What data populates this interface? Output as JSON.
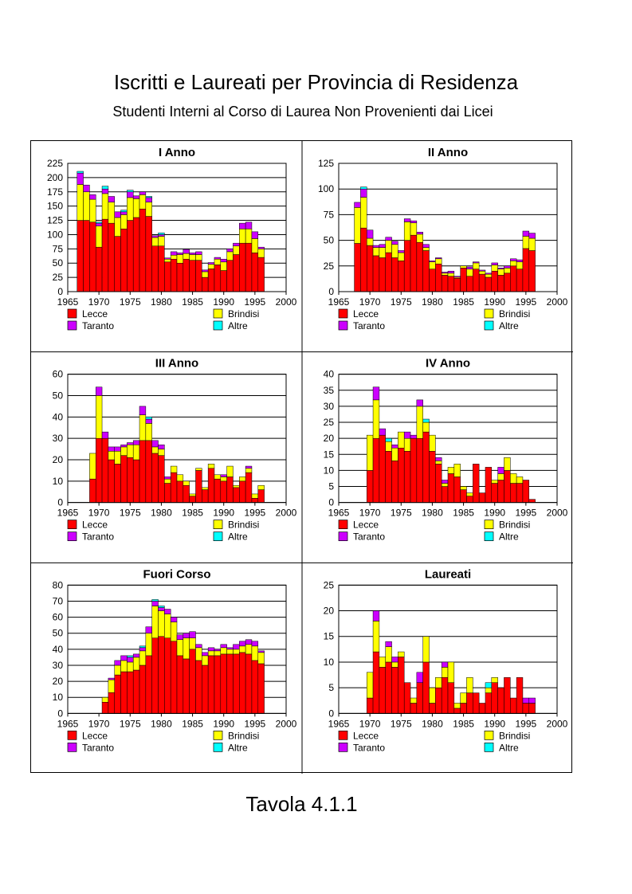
{
  "title": "Iscritti e Laureati per Provincia di Residenza",
  "subtitle": "Studenti Interni al Corso di Laurea Non Provenienti dai Licei",
  "footer": "Tavola 4.1.1",
  "colors": {
    "Lecce": "#ff0000",
    "Brindisi": "#ffff00",
    "Taranto": "#cc00ff",
    "Altre": "#00ffff"
  },
  "legend": [
    "Lecce",
    "Brindisi",
    "Taranto",
    "Altre"
  ],
  "chart_data": [
    {
      "type": "bar",
      "stacked": true,
      "title": "I Anno",
      "xlim": [
        1965,
        2000
      ],
      "xticks": [
        1965,
        1970,
        1975,
        1980,
        1985,
        1990,
        1995,
        2000
      ],
      "ylim": [
        0,
        225
      ],
      "yticks": [
        0,
        25,
        50,
        75,
        100,
        125,
        150,
        175,
        200,
        225
      ],
      "x": [
        1967,
        1968,
        1969,
        1970,
        1971,
        1972,
        1973,
        1974,
        1975,
        1976,
        1977,
        1978,
        1979,
        1980,
        1981,
        1982,
        1983,
        1984,
        1985,
        1986,
        1987,
        1988,
        1989,
        1990,
        1991,
        1992,
        1993,
        1994,
        1995,
        1996
      ],
      "series": [
        {
          "name": "Lecce",
          "values": [
            125,
            125,
            122,
            78,
            127,
            120,
            97,
            110,
            125,
            130,
            145,
            132,
            80,
            80,
            52,
            57,
            50,
            57,
            55,
            55,
            25,
            40,
            47,
            37,
            55,
            65,
            85,
            85,
            68,
            60
          ]
        },
        {
          "name": "Brindisi",
          "values": [
            63,
            50,
            40,
            37,
            45,
            37,
            33,
            25,
            40,
            33,
            25,
            25,
            15,
            17,
            5,
            7,
            15,
            10,
            10,
            10,
            10,
            8,
            10,
            15,
            15,
            15,
            25,
            25,
            25,
            15
          ]
        },
        {
          "name": "Taranto",
          "values": [
            20,
            12,
            8,
            5,
            8,
            10,
            10,
            5,
            10,
            5,
            5,
            8,
            3,
            3,
            2,
            6,
            3,
            7,
            3,
            5,
            3,
            3,
            3,
            5,
            5,
            5,
            10,
            12,
            12,
            3
          ]
        },
        {
          "name": "Altre",
          "values": [
            3,
            0,
            0,
            2,
            5,
            0,
            0,
            3,
            3,
            0,
            0,
            2,
            0,
            3,
            0,
            0,
            0,
            0,
            0,
            0,
            0,
            0,
            0,
            0,
            0,
            0,
            0,
            0,
            0,
            0
          ]
        }
      ],
      "legend": [
        "Lecce",
        "Brindisi",
        "Taranto",
        "Altre"
      ],
      "grid": true
    },
    {
      "type": "bar",
      "stacked": true,
      "title": "II Anno",
      "xlim": [
        1965,
        2000
      ],
      "xticks": [
        1965,
        1970,
        1975,
        1980,
        1985,
        1990,
        1995,
        2000
      ],
      "ylim": [
        0,
        125
      ],
      "yticks": [
        0,
        25,
        50,
        75,
        100,
        125
      ],
      "x": [
        1968,
        1969,
        1970,
        1971,
        1972,
        1973,
        1974,
        1975,
        1976,
        1977,
        1978,
        1979,
        1980,
        1981,
        1982,
        1983,
        1984,
        1985,
        1986,
        1987,
        1988,
        1989,
        1990,
        1991,
        1992,
        1993,
        1994,
        1995,
        1996
      ],
      "series": [
        {
          "name": "Lecce",
          "values": [
            47,
            62,
            45,
            35,
            33,
            38,
            33,
            30,
            50,
            55,
            48,
            40,
            22,
            27,
            16,
            15,
            13,
            23,
            15,
            22,
            17,
            14,
            20,
            16,
            18,
            25,
            22,
            42,
            40
          ]
        },
        {
          "name": "Brindisi",
          "values": [
            35,
            30,
            7,
            8,
            10,
            12,
            13,
            8,
            18,
            12,
            8,
            3,
            7,
            5,
            2,
            3,
            1,
            2,
            7,
            6,
            3,
            3,
            6,
            6,
            5,
            5,
            7,
            12,
            12
          ]
        },
        {
          "name": "Taranto",
          "values": [
            5,
            8,
            8,
            2,
            3,
            3,
            3,
            2,
            3,
            2,
            2,
            3,
            1,
            1,
            1,
            2,
            1,
            0,
            2,
            1,
            1,
            1,
            2,
            1,
            2,
            2,
            2,
            5,
            5
          ]
        },
        {
          "name": "Altre",
          "values": [
            0,
            2,
            0,
            0,
            0,
            0,
            0,
            0,
            0,
            0,
            0,
            0,
            0,
            0,
            0,
            0,
            0,
            0,
            0,
            0,
            0,
            0,
            0,
            0,
            0,
            0,
            0,
            0,
            0
          ]
        }
      ],
      "legend": [
        "Lecce",
        "Brindisi",
        "Taranto",
        "Altre"
      ],
      "grid": true
    },
    {
      "type": "bar",
      "stacked": true,
      "title": "III Anno",
      "xlim": [
        1965,
        2000
      ],
      "xticks": [
        1965,
        1970,
        1975,
        1980,
        1985,
        1990,
        1995,
        2000
      ],
      "ylim": [
        0,
        60
      ],
      "yticks": [
        0,
        10,
        20,
        30,
        40,
        50,
        60
      ],
      "x": [
        1969,
        1970,
        1971,
        1972,
        1973,
        1974,
        1975,
        1976,
        1977,
        1978,
        1979,
        1980,
        1981,
        1982,
        1983,
        1984,
        1985,
        1986,
        1987,
        1988,
        1989,
        1990,
        1991,
        1992,
        1993,
        1994,
        1995,
        1996
      ],
      "series": [
        {
          "name": "Lecce",
          "values": [
            11,
            30,
            30,
            20,
            18,
            22,
            21,
            20,
            29,
            29,
            23,
            22,
            9,
            14,
            10,
            8,
            3,
            15,
            6,
            16,
            11,
            10,
            12,
            7,
            10,
            14,
            2,
            6
          ]
        },
        {
          "name": "Brindisi",
          "values": [
            12,
            20,
            0,
            4,
            6,
            4,
            6,
            7,
            12,
            8,
            3,
            3,
            2,
            3,
            3,
            2,
            1,
            1,
            1,
            2,
            2,
            2,
            5,
            1,
            2,
            2,
            2,
            2
          ]
        },
        {
          "name": "Taranto",
          "values": [
            0,
            4,
            3,
            2,
            2,
            1,
            1,
            2,
            4,
            2,
            3,
            2,
            1,
            0,
            0,
            0,
            0,
            0,
            0,
            0,
            0,
            1,
            0,
            0,
            0,
            1,
            0,
            0
          ]
        },
        {
          "name": "Altre",
          "values": [
            0,
            0,
            0,
            0,
            0,
            0,
            0,
            0,
            0,
            1,
            0,
            0,
            0,
            0,
            0,
            0,
            0,
            0,
            0,
            0,
            0,
            0,
            0,
            0,
            0,
            0,
            0,
            0
          ]
        }
      ],
      "legend": [
        "Lecce",
        "Brindisi",
        "Taranto",
        "Altre"
      ],
      "grid": true
    },
    {
      "type": "bar",
      "stacked": true,
      "title": "IV Anno",
      "xlim": [
        1965,
        2000
      ],
      "xticks": [
        1965,
        1970,
        1975,
        1980,
        1985,
        1990,
        1995,
        2000
      ],
      "ylim": [
        0,
        40
      ],
      "yticks": [
        0,
        5,
        10,
        15,
        20,
        25,
        30,
        35,
        40
      ],
      "x": [
        1970,
        1971,
        1972,
        1973,
        1974,
        1975,
        1976,
        1977,
        1978,
        1979,
        1980,
        1981,
        1982,
        1983,
        1984,
        1985,
        1986,
        1987,
        1988,
        1989,
        1990,
        1991,
        1992,
        1993,
        1994,
        1995,
        1996
      ],
      "series": [
        {
          "name": "Lecce",
          "values": [
            10,
            20,
            21,
            16,
            13,
            17,
            16,
            20,
            20,
            22,
            16,
            12,
            5,
            9,
            8,
            4,
            2,
            12,
            3,
            11,
            6,
            7,
            10,
            6,
            6,
            7,
            1
          ]
        },
        {
          "name": "Brindisi",
          "values": [
            11,
            12,
            0,
            3,
            4,
            5,
            4,
            0,
            10,
            3,
            5,
            1,
            1,
            2,
            4,
            1,
            1,
            0,
            0,
            0,
            1,
            2,
            4,
            3,
            2,
            0,
            0
          ]
        },
        {
          "name": "Taranto",
          "values": [
            0,
            4,
            2,
            0,
            1,
            0,
            2,
            1,
            2,
            0,
            0,
            1,
            1,
            0,
            0,
            0,
            0,
            0,
            0,
            0,
            0,
            2,
            0,
            0,
            0,
            0,
            0
          ]
        },
        {
          "name": "Altre",
          "values": [
            0,
            0,
            0,
            1,
            0,
            0,
            0,
            0,
            0,
            1,
            0,
            0,
            0,
            0,
            0,
            0,
            0,
            0,
            0,
            0,
            0,
            0,
            0,
            0,
            0,
            0,
            0
          ]
        }
      ],
      "legend": [
        "Lecce",
        "Brindisi",
        "Taranto",
        "Altre"
      ],
      "grid": true
    },
    {
      "type": "bar",
      "stacked": true,
      "title": "Fuori Corso",
      "xlim": [
        1965,
        2000
      ],
      "xticks": [
        1965,
        1970,
        1975,
        1980,
        1985,
        1990,
        1995,
        2000
      ],
      "ylim": [
        0,
        80
      ],
      "yticks": [
        0,
        10,
        20,
        30,
        40,
        50,
        60,
        70,
        80
      ],
      "x": [
        1971,
        1972,
        1973,
        1974,
        1975,
        1976,
        1977,
        1978,
        1979,
        1980,
        1981,
        1982,
        1983,
        1984,
        1985,
        1986,
        1987,
        1988,
        1989,
        1990,
        1991,
        1992,
        1993,
        1994,
        1995,
        1996
      ],
      "series": [
        {
          "name": "Lecce",
          "values": [
            7,
            13,
            24,
            26,
            26,
            27,
            30,
            36,
            47,
            48,
            47,
            45,
            36,
            34,
            40,
            33,
            30,
            36,
            36,
            37,
            37,
            37,
            38,
            37,
            33,
            31
          ]
        },
        {
          "name": "Brindisi",
          "values": [
            3,
            8,
            6,
            7,
            6,
            8,
            9,
            14,
            20,
            16,
            15,
            12,
            10,
            13,
            7,
            8,
            6,
            3,
            3,
            4,
            3,
            3,
            4,
            6,
            9,
            7
          ]
        },
        {
          "name": "Taranto",
          "values": [
            0,
            1,
            3,
            3,
            3,
            2,
            2,
            4,
            3,
            2,
            3,
            3,
            3,
            3,
            4,
            2,
            2,
            2,
            1,
            2,
            1,
            3,
            3,
            3,
            3,
            1
          ]
        },
        {
          "name": "Altre",
          "values": [
            0,
            0,
            0,
            0,
            1,
            0,
            1,
            0,
            1,
            1,
            0,
            0,
            0,
            0,
            0,
            0,
            0,
            0,
            0,
            0,
            0,
            0,
            0,
            0,
            0,
            0
          ]
        }
      ],
      "legend": [
        "Lecce",
        "Brindisi",
        "Taranto",
        "Altre"
      ],
      "grid": true
    },
    {
      "type": "bar",
      "stacked": true,
      "title": "Laureati",
      "xlim": [
        1965,
        2000
      ],
      "xticks": [
        1965,
        1970,
        1975,
        1980,
        1985,
        1990,
        1995,
        2000
      ],
      "ylim": [
        0,
        25
      ],
      "yticks": [
        0,
        5,
        10,
        15,
        20,
        25
      ],
      "x": [
        1970,
        1971,
        1972,
        1973,
        1974,
        1975,
        1976,
        1977,
        1978,
        1979,
        1980,
        1981,
        1982,
        1983,
        1984,
        1985,
        1986,
        1987,
        1988,
        1989,
        1990,
        1991,
        1992,
        1993,
        1994,
        1995,
        1996
      ],
      "series": [
        {
          "name": "Lecce",
          "values": [
            3,
            12,
            9,
            10,
            9,
            11,
            6,
            2,
            6,
            10,
            2,
            5,
            7,
            6,
            1,
            2,
            4,
            4,
            2,
            4,
            6,
            5,
            7,
            3,
            7,
            2,
            2
          ]
        },
        {
          "name": "Brindisi",
          "values": [
            5,
            6,
            2,
            3,
            1,
            1,
            0,
            1,
            0,
            5,
            3,
            2,
            2,
            4,
            1,
            2,
            3,
            0,
            0,
            1,
            1,
            0,
            0,
            0,
            0,
            0,
            0
          ]
        },
        {
          "name": "Taranto",
          "values": [
            0,
            2,
            0,
            1,
            1,
            0,
            0,
            0,
            2,
            0,
            0,
            0,
            1,
            0,
            0,
            0,
            0,
            0,
            0,
            0,
            0,
            0,
            0,
            0,
            0,
            1,
            1
          ]
        },
        {
          "name": "Altre",
          "values": [
            0,
            0,
            0,
            0,
            0,
            0,
            0,
            0,
            0,
            0,
            0,
            0,
            0,
            0,
            0,
            0,
            0,
            0,
            0,
            1,
            0,
            0,
            0,
            0,
            0,
            0,
            0
          ]
        }
      ],
      "legend": [
        "Lecce",
        "Brindisi",
        "Taranto",
        "Altre"
      ],
      "grid": true
    }
  ]
}
